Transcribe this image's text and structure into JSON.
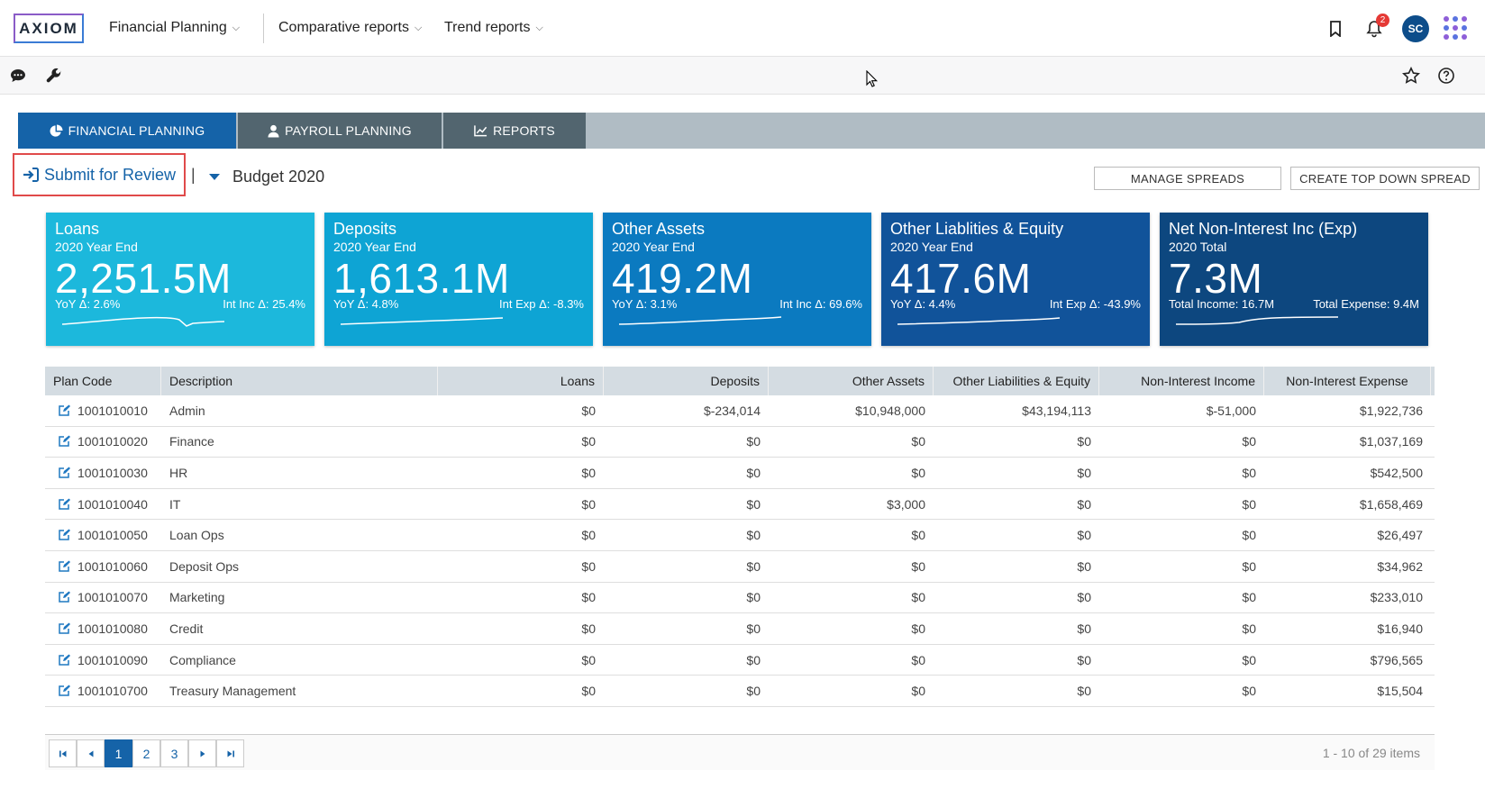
{
  "app": {
    "logo": "AXIOM"
  },
  "topnav": {
    "items": [
      {
        "label": "Financial Planning"
      },
      {
        "label": "Comparative reports"
      },
      {
        "label": "Trend reports"
      }
    ],
    "notification_count": "2",
    "avatar_initials": "SC"
  },
  "tabs": [
    {
      "label": "FINANCIAL PLANNING",
      "icon": "pie-chart-icon",
      "active": true
    },
    {
      "label": "PAYROLL PLANNING",
      "icon": "user-icon",
      "active": false
    },
    {
      "label": "REPORTS",
      "icon": "line-chart-icon",
      "active": false
    }
  ],
  "actions": {
    "submit_label": "Submit for Review",
    "separator": "|",
    "budget_label": "Budget 2020",
    "manage_spreads": "MANAGE SPREADS",
    "create_top_down": "CREATE TOP DOWN SPREAD"
  },
  "cards": [
    {
      "title": "Loans",
      "subtitle": "2020 Year End",
      "value": "2,251.5M",
      "left": "YoY Δ: 2.6%",
      "right": "Int Inc Δ: 25.4%",
      "color": "#1cb8dc"
    },
    {
      "title": "Deposits",
      "subtitle": "2020 Year End",
      "value": "1,613.1M",
      "left": "YoY Δ: 4.8%",
      "right": "Int Exp Δ: -8.3%",
      "color": "#0ea4d4"
    },
    {
      "title": "Other Assets",
      "subtitle": "2020 Year End",
      "value": "419.2M",
      "left": "YoY Δ: 3.1%",
      "right": "Int Inc Δ: 69.6%",
      "color": "#0b7ac0"
    },
    {
      "title": "Other Liablities & Equity",
      "subtitle": "2020 Year End",
      "value": "417.6M",
      "left": "YoY Δ: 4.4%",
      "right": "Int Exp Δ: -43.9%",
      "color": "#11539a"
    },
    {
      "title": "Net Non-Interest Inc (Exp)",
      "subtitle": "2020 Total",
      "value": "7.3M",
      "left": "Total Income: 16.7M",
      "right": "Total Expense: 9.4M",
      "color": "#0d477f"
    }
  ],
  "table": {
    "columns": [
      "Plan Code",
      "Description",
      "Loans",
      "Deposits",
      "Other Assets",
      "Other Liabilities & Equity",
      "Non-Interest Income",
      "Non-Interest Expense"
    ],
    "rows": [
      [
        "1001010010",
        "Admin",
        "$0",
        "$-234,014",
        "$10,948,000",
        "$43,194,113",
        "$-51,000",
        "$1,922,736"
      ],
      [
        "1001010020",
        "Finance",
        "$0",
        "$0",
        "$0",
        "$0",
        "$0",
        "$1,037,169"
      ],
      [
        "1001010030",
        "HR",
        "$0",
        "$0",
        "$0",
        "$0",
        "$0",
        "$542,500"
      ],
      [
        "1001010040",
        "IT",
        "$0",
        "$0",
        "$3,000",
        "$0",
        "$0",
        "$1,658,469"
      ],
      [
        "1001010050",
        "Loan Ops",
        "$0",
        "$0",
        "$0",
        "$0",
        "$0",
        "$26,497"
      ],
      [
        "1001010060",
        "Deposit Ops",
        "$0",
        "$0",
        "$0",
        "$0",
        "$0",
        "$34,962"
      ],
      [
        "1001010070",
        "Marketing",
        "$0",
        "$0",
        "$0",
        "$0",
        "$0",
        "$233,010"
      ],
      [
        "1001010080",
        "Credit",
        "$0",
        "$0",
        "$0",
        "$0",
        "$0",
        "$16,940"
      ],
      [
        "1001010090",
        "Compliance",
        "$0",
        "$0",
        "$0",
        "$0",
        "$0",
        "$796,565"
      ],
      [
        "1001010700",
        "Treasury Management",
        "$0",
        "$0",
        "$0",
        "$0",
        "$0",
        "$15,504"
      ]
    ]
  },
  "pager": {
    "pages": [
      "1",
      "2",
      "3"
    ],
    "current": "1",
    "info": "1 - 10 of 29 items"
  }
}
